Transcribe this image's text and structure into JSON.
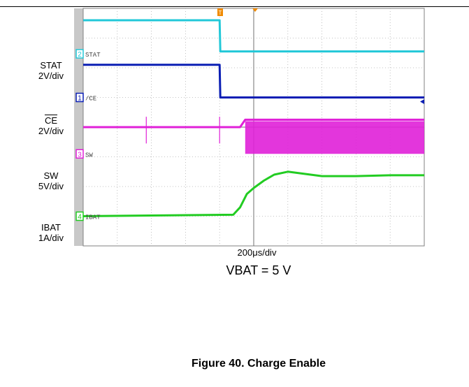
{
  "figure": {
    "caption": "Figure 40. Charge Enable",
    "condition": "VBAT = 5 V",
    "time_scale": "200μs/div"
  },
  "chart_data": {
    "type": "line",
    "xlabel": "200μs/div",
    "x_divisions": 10,
    "y_divisions": 8,
    "trigger_marker": "T",
    "series": [
      {
        "name": "STAT",
        "scale": "2V/div",
        "channel": "2",
        "marker_label": "STAT",
        "color": "#22c8d8",
        "x": [
          0,
          4,
          4.02,
          10
        ],
        "y": [
          7.6,
          7.6,
          6.55,
          6.55
        ]
      },
      {
        "name": "CE",
        "scale": "2V/div",
        "channel": "1",
        "marker_label": "/CE",
        "color": "#0a1eb4",
        "x": [
          0,
          4,
          4.02,
          10
        ],
        "y": [
          6.1,
          6.1,
          5.0,
          5.0
        ]
      },
      {
        "name": "SW",
        "scale": "5V/div",
        "channel": "3",
        "marker_label": "SW",
        "color": "#e020d8",
        "x": [
          0,
          4.6,
          4.75,
          10
        ],
        "y": [
          4.0,
          4.0,
          4.25,
          4.25
        ],
        "switching_band": [
          3.1,
          4.2
        ]
      },
      {
        "name": "IBAT",
        "scale": "1A/div",
        "channel": "4",
        "marker_label": "IBAT",
        "color": "#22cc22",
        "x": [
          0,
          4.4,
          4.6,
          4.8,
          5.0,
          5.3,
          5.6,
          6.0,
          7.0,
          8.0,
          9.0,
          10
        ],
        "y": [
          1.0,
          1.05,
          1.3,
          1.75,
          1.95,
          2.2,
          2.4,
          2.5,
          2.35,
          2.35,
          2.38,
          2.38
        ]
      }
    ]
  }
}
